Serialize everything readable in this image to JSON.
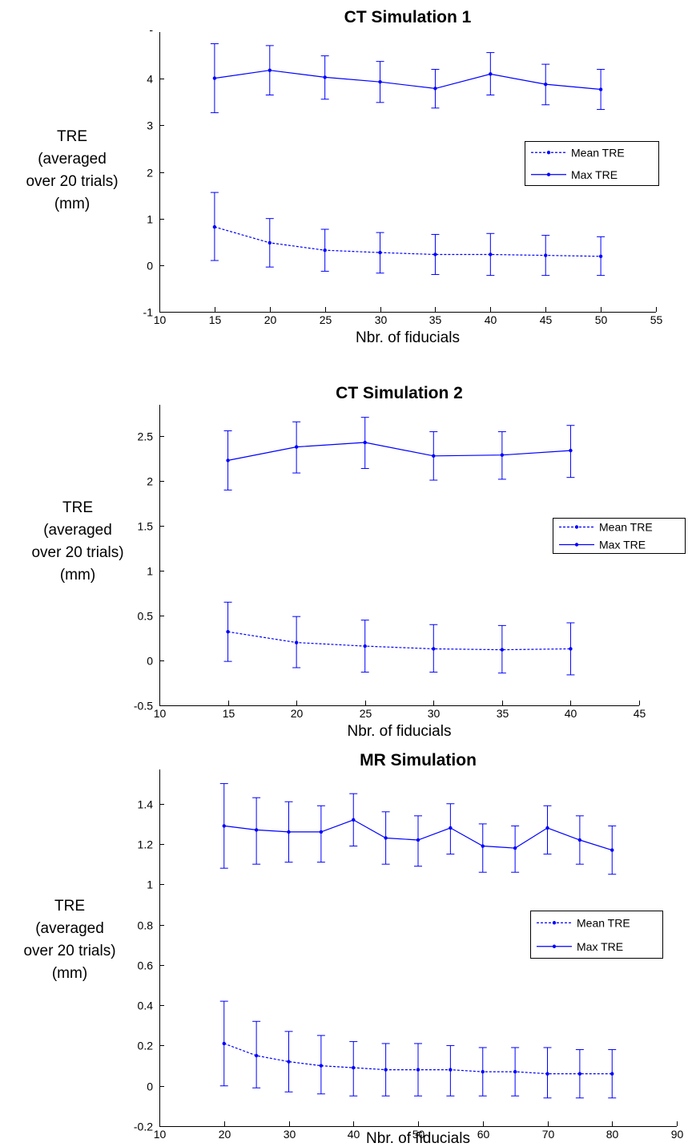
{
  "chart_data": [
    {
      "type": "line",
      "title": "CT Simulation 1",
      "xlabel": "Nbr. of fiducials",
      "ylabel": [
        "TRE",
        "(averaged",
        "over 20 trials)",
        "(mm)"
      ],
      "xlim": [
        10,
        55
      ],
      "ylim": [
        -1,
        5
      ],
      "xticks": [
        10,
        15,
        20,
        25,
        30,
        35,
        40,
        45,
        50,
        55
      ],
      "yticks": [
        -1,
        0,
        1,
        2,
        3,
        4
      ],
      "ytick_labels": [
        "-1",
        "0",
        "1",
        "2",
        "3",
        "4"
      ],
      "top_tick_label": "-",
      "grid": false,
      "legend_placement": "right",
      "color": "#0000ff",
      "x": [
        15,
        20,
        25,
        30,
        35,
        40,
        45,
        50
      ],
      "series": [
        {
          "name": "Mean TRE",
          "style": "dashed",
          "values": [
            0.82,
            0.48,
            0.32,
            0.27,
            0.23,
            0.23,
            0.21,
            0.19
          ],
          "err_low": [
            0.1,
            -0.04,
            -0.13,
            -0.17,
            -0.2,
            -0.22,
            -0.22,
            -0.22
          ],
          "err_high": [
            1.56,
            1.0,
            0.77,
            0.7,
            0.66,
            0.68,
            0.64,
            0.61
          ]
        },
        {
          "name": "Max TRE",
          "style": "solid",
          "values": [
            4.01,
            4.18,
            4.03,
            3.93,
            3.79,
            4.1,
            3.88,
            3.77
          ],
          "err_low": [
            3.27,
            3.65,
            3.56,
            3.49,
            3.37,
            3.65,
            3.44,
            3.34
          ],
          "err_high": [
            4.75,
            4.71,
            4.49,
            4.37,
            4.2,
            4.56,
            4.31,
            4.2
          ]
        }
      ]
    },
    {
      "type": "line",
      "title": "CT Simulation 2",
      "xlabel": "Nbr. of fiducials",
      "ylabel": [
        "TRE",
        "(averaged",
        "over 20 trials)",
        "(mm)"
      ],
      "xlim": [
        10,
        45
      ],
      "ylim": [
        -0.5,
        2.85
      ],
      "xticks": [
        10,
        15,
        20,
        25,
        30,
        35,
        40,
        45
      ],
      "yticks": [
        -0.5,
        0,
        0.5,
        1,
        1.5,
        2,
        2.5
      ],
      "ytick_labels": [
        "-0.5",
        "0",
        "0.5",
        "1",
        "1.5",
        "2",
        "2.5"
      ],
      "grid": false,
      "legend_placement": "right",
      "color": "#0000ff",
      "x": [
        15,
        20,
        25,
        30,
        35,
        40
      ],
      "series": [
        {
          "name": "Mean TRE",
          "style": "dashed",
          "values": [
            0.32,
            0.2,
            0.16,
            0.13,
            0.12,
            0.13
          ],
          "err_low": [
            -0.01,
            -0.08,
            -0.13,
            -0.13,
            -0.14,
            -0.16
          ],
          "err_high": [
            0.65,
            0.49,
            0.45,
            0.4,
            0.39,
            0.42
          ]
        },
        {
          "name": "Max TRE",
          "style": "solid",
          "values": [
            2.23,
            2.38,
            2.43,
            2.28,
            2.29,
            2.34
          ],
          "err_low": [
            1.9,
            2.09,
            2.14,
            2.01,
            2.02,
            2.04
          ],
          "err_high": [
            2.56,
            2.66,
            2.71,
            2.55,
            2.55,
            2.62
          ]
        }
      ]
    },
    {
      "type": "line",
      "title": "MR Simulation",
      "xlabel": "Nbr. of fiducials",
      "ylabel": [
        "TRE",
        "(averaged",
        "over 20 trials)",
        "(mm)"
      ],
      "xlim": [
        10,
        90
      ],
      "ylim": [
        -0.2,
        1.57
      ],
      "xticks": [
        10,
        20,
        30,
        40,
        50,
        60,
        70,
        80,
        90
      ],
      "yticks": [
        -0.2,
        0,
        0.2,
        0.4,
        0.6,
        0.8,
        1,
        1.2,
        1.4
      ],
      "ytick_labels": [
        "-0.2",
        "0",
        "0.2",
        "0.4",
        "0.6",
        "0.8",
        "1",
        "1.2",
        "1.4"
      ],
      "grid": false,
      "legend_placement": "right",
      "color": "#0000ff",
      "x": [
        20,
        25,
        30,
        35,
        40,
        45,
        50,
        55,
        60,
        65,
        70,
        75,
        80
      ],
      "series": [
        {
          "name": "Mean TRE",
          "style": "dashed",
          "values": [
            0.21,
            0.15,
            0.12,
            0.1,
            0.09,
            0.08,
            0.08,
            0.08,
            0.07,
            0.07,
            0.06,
            0.06,
            0.06
          ],
          "err_low": [
            0.0,
            -0.01,
            -0.03,
            -0.04,
            -0.05,
            -0.05,
            -0.05,
            -0.05,
            -0.05,
            -0.05,
            -0.06,
            -0.06,
            -0.06
          ],
          "err_high": [
            0.42,
            0.32,
            0.27,
            0.25,
            0.22,
            0.21,
            0.21,
            0.2,
            0.19,
            0.19,
            0.19,
            0.18,
            0.18
          ]
        },
        {
          "name": "Max TRE",
          "style": "solid",
          "values": [
            1.29,
            1.27,
            1.26,
            1.26,
            1.32,
            1.23,
            1.22,
            1.28,
            1.19,
            1.18,
            1.28,
            1.22,
            1.17
          ],
          "err_low": [
            1.08,
            1.1,
            1.11,
            1.11,
            1.19,
            1.1,
            1.09,
            1.15,
            1.06,
            1.06,
            1.15,
            1.1,
            1.05
          ],
          "err_high": [
            1.5,
            1.43,
            1.41,
            1.39,
            1.45,
            1.36,
            1.34,
            1.4,
            1.3,
            1.29,
            1.39,
            1.34,
            1.29
          ]
        }
      ]
    }
  ]
}
